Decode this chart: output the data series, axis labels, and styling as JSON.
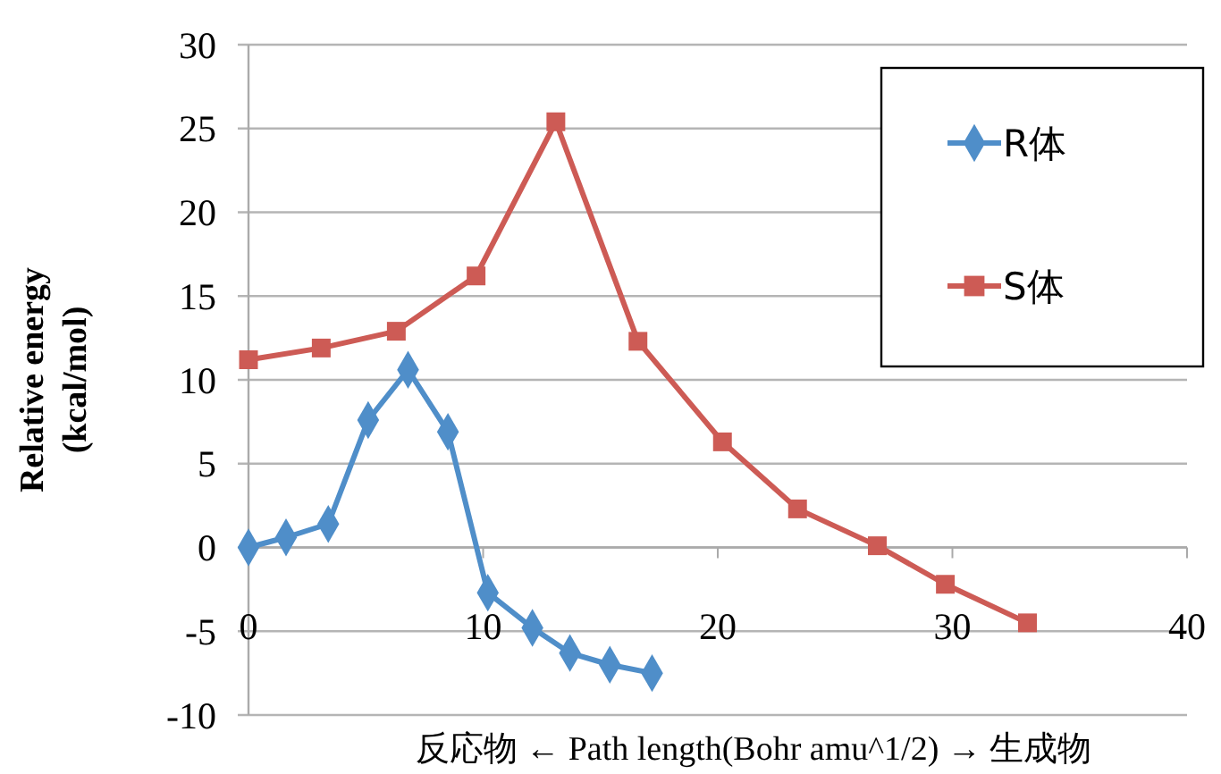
{
  "chart_data": {
    "type": "line",
    "xlabel": "反応物 ← Path length(Bohr amu^1/2) → 生成物",
    "ylabel": "Relative energy\n(kcal/mol)",
    "xlim": [
      0,
      40
    ],
    "xticks": [
      0,
      10,
      20,
      30,
      40
    ],
    "ylim": [
      -10,
      30
    ],
    "yticks": [
      -10,
      -5,
      0,
      5,
      10,
      15,
      20,
      25,
      30
    ],
    "grid": "y",
    "legend": "top right",
    "series": [
      {
        "name": "R体",
        "color": "#4f8ec9",
        "marker": "diamond",
        "x": [
          0,
          1.6,
          3.4,
          5.1,
          6.8,
          8.5,
          10.2,
          12.1,
          13.7,
          15.4,
          17.2
        ],
        "values": [
          0,
          0.6,
          1.4,
          7.6,
          10.6,
          6.9,
          -2.7,
          -4.8,
          -6.3,
          -7.0,
          -7.5
        ]
      },
      {
        "name": "S体",
        "color": "#cd5b55",
        "marker": "square",
        "x": [
          0,
          3.1,
          6.3,
          9.7,
          13.1,
          16.6,
          20.2,
          23.4,
          26.8,
          29.7,
          33.2
        ],
        "values": [
          11.2,
          11.9,
          12.9,
          16.2,
          25.4,
          12.3,
          6.3,
          2.3,
          0.1,
          -2.2,
          -4.5
        ]
      }
    ]
  }
}
